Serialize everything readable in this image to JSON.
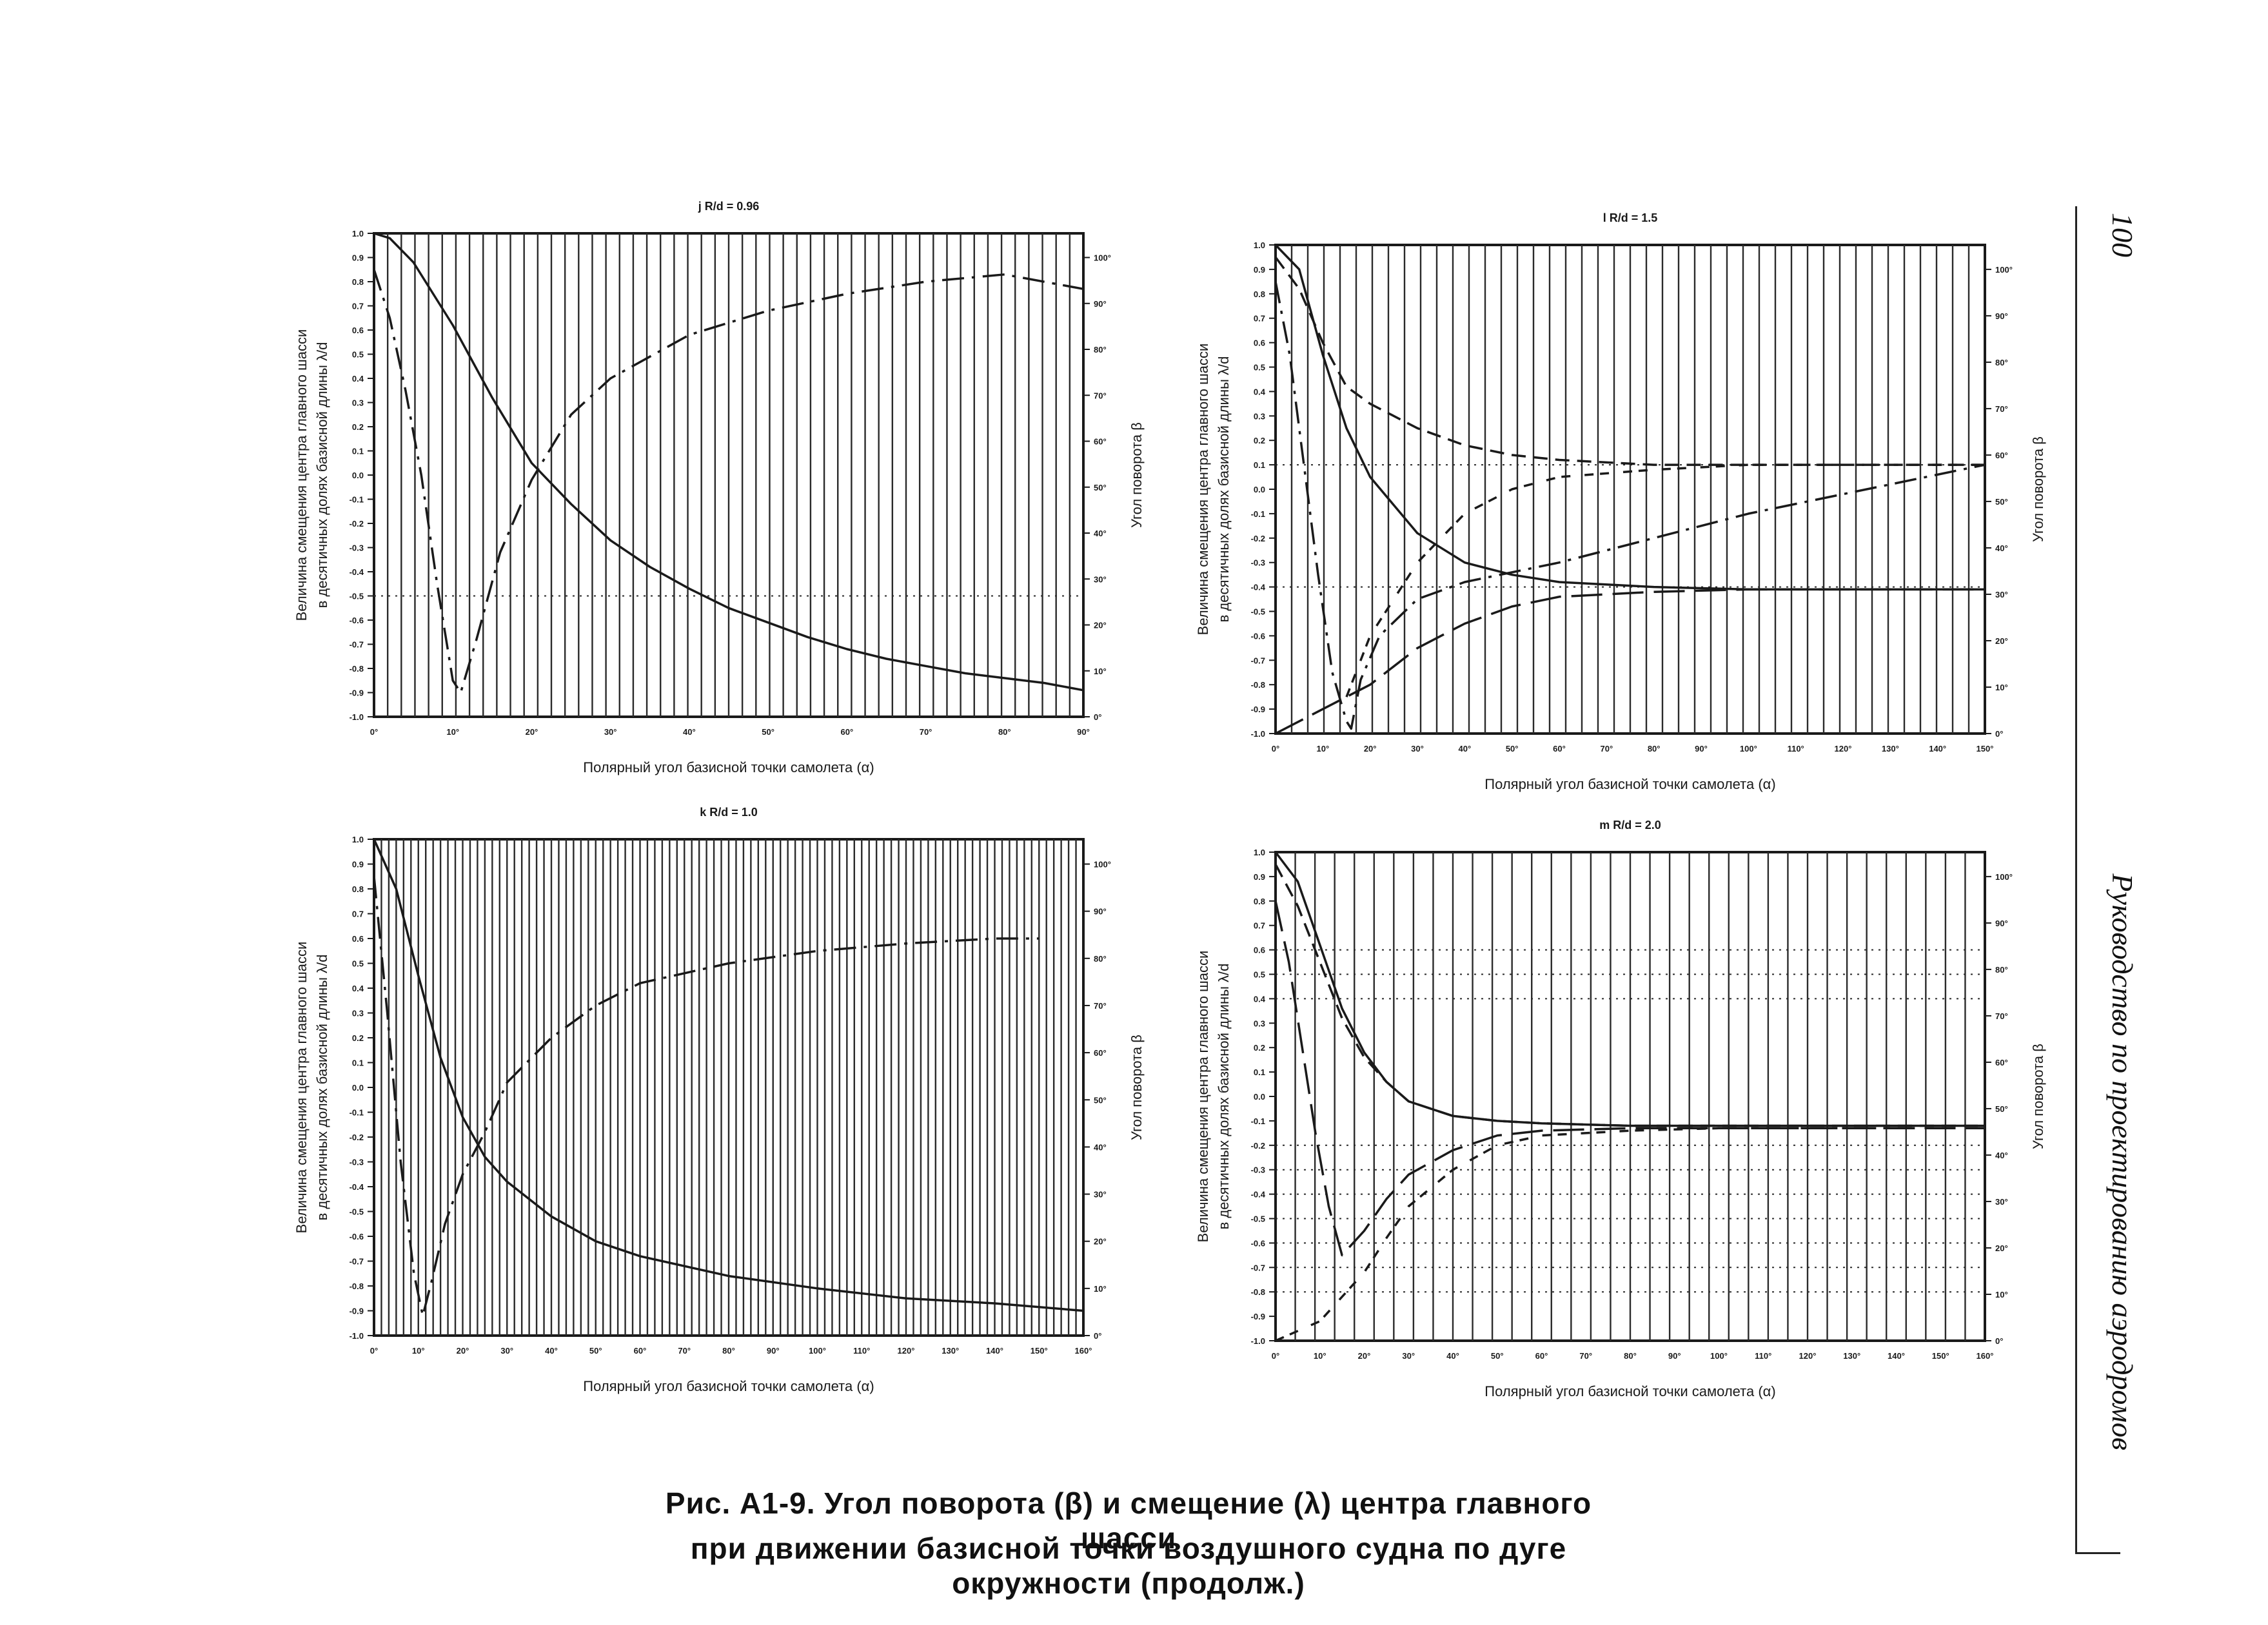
{
  "page": {
    "number": "100",
    "running_title": "Руководство по проектированию аэродромов",
    "caption_line1": "Рис. А1-9. Угол поворота (β) и смещение (λ) центра главного шасси",
    "caption_line2": "при движении базисной точки воздушного судна по дуге окружности (продолж.)"
  },
  "colors": {
    "ink": "#1a1a1a",
    "grid": "#2a2a2a",
    "paper": "#ffffff"
  },
  "chart_data": [
    {
      "id": "j",
      "type": "line",
      "panel_label": "j  R/d = 0.96",
      "xlabel": "Полярный угол базисной точки самолета (α)",
      "ylabel_line1": "Величина смещения центра главного шасси",
      "ylabel_line2": "в десятичных долях базисной длины λ/d",
      "y2label": "Угол поворота β",
      "xlim": [
        0,
        90
      ],
      "ylim": [
        -1.0,
        1.0
      ],
      "y2lim": [
        0,
        100
      ],
      "vertical_grid_count": 52,
      "dotted_y": [
        -0.5
      ],
      "series": [
        {
          "style": "solid",
          "x": [
            0,
            2,
            5,
            10,
            15,
            20,
            25,
            30,
            35,
            40,
            45,
            50,
            55,
            60,
            65,
            70,
            75,
            80,
            85,
            90
          ],
          "y": [
            1.0,
            0.98,
            0.88,
            0.62,
            0.32,
            0.05,
            -0.12,
            -0.27,
            -0.38,
            -0.47,
            -0.55,
            -0.61,
            -0.67,
            -0.72,
            -0.76,
            -0.79,
            -0.82,
            -0.84,
            -0.86,
            -0.89
          ]
        },
        {
          "style": "dashdot",
          "x": [
            0,
            2,
            4,
            6,
            8,
            10,
            11,
            13,
            16,
            20,
            25,
            30,
            40,
            50,
            60,
            70,
            80,
            90
          ],
          "y": [
            0.85,
            0.65,
            0.35,
            0.0,
            -0.45,
            -0.85,
            -0.9,
            -0.68,
            -0.32,
            -0.02,
            0.25,
            0.4,
            0.58,
            0.68,
            0.75,
            0.8,
            0.83,
            0.77
          ]
        }
      ]
    },
    {
      "id": "l",
      "type": "line",
      "panel_label": "l  R/d = 1.5",
      "xlabel": "Полярный угол базисной точки самолета (α)",
      "ylabel_line1": "Величина смещения центра главного шасси",
      "ylabel_line2": "в десятичных долях базисной длины λ/d",
      "y2label": "Угол поворота β",
      "xlim": [
        0,
        150
      ],
      "ylim": [
        -1.0,
        1.0
      ],
      "y2lim": [
        0,
        100
      ],
      "vertical_grid_count": 44,
      "dotted_y": [
        0.1,
        -0.4
      ],
      "series": [
        {
          "style": "solid",
          "x": [
            0,
            5,
            10,
            15,
            20,
            30,
            40,
            50,
            60,
            80,
            100,
            120,
            150
          ],
          "y": [
            1.0,
            0.9,
            0.55,
            0.25,
            0.05,
            -0.18,
            -0.3,
            -0.35,
            -0.38,
            -0.4,
            -0.41,
            -0.41,
            -0.41
          ]
        },
        {
          "style": "dashed",
          "x": [
            0,
            5,
            10,
            15,
            20,
            30,
            40,
            50,
            60,
            80,
            100,
            120,
            150
          ],
          "y": [
            0.95,
            0.82,
            0.6,
            0.42,
            0.35,
            0.25,
            0.18,
            0.14,
            0.12,
            0.1,
            0.1,
            0.1,
            0.1
          ]
        },
        {
          "style": "dashdot",
          "x": [
            0,
            3,
            6,
            9,
            12,
            15,
            16,
            18,
            22,
            30,
            40,
            60,
            80,
            100,
            120,
            150
          ],
          "y": [
            0.85,
            0.55,
            0.1,
            -0.35,
            -0.75,
            -0.95,
            -0.98,
            -0.78,
            -0.6,
            -0.45,
            -0.38,
            -0.3,
            -0.2,
            -0.1,
            -0.02,
            0.1
          ]
        },
        {
          "style": "longdash",
          "x": [
            0,
            10,
            20,
            30,
            40,
            50,
            60,
            80,
            100,
            120,
            150
          ],
          "y": [
            -1.0,
            -0.9,
            -0.8,
            -0.65,
            -0.55,
            -0.48,
            -0.44,
            -0.42,
            -0.41,
            -0.41,
            -0.41
          ]
        },
        {
          "style": "dashed2",
          "x": [
            15,
            20,
            30,
            40,
            50,
            60,
            80,
            100,
            120,
            150
          ],
          "y": [
            -0.85,
            -0.6,
            -0.3,
            -0.1,
            0.0,
            0.05,
            0.08,
            0.1,
            0.1,
            0.1
          ]
        }
      ]
    },
    {
      "id": "k",
      "type": "line",
      "panel_label": "k  R/d = 1.0",
      "xlabel": "Полярный угол базисной точки самолета (α)",
      "ylabel_line1": "Величина смещения центра главного шасси",
      "ylabel_line2": "в десятичных долях базисной длины λ/d",
      "y2label": "Угол поворота β",
      "xlim": [
        0,
        160
      ],
      "ylim": [
        -1.0,
        1.0
      ],
      "y2lim": [
        0,
        100
      ],
      "vertical_grid_count": 96,
      "dotted_y": [],
      "series": [
        {
          "style": "solid",
          "x": [
            0,
            5,
            10,
            15,
            20,
            25,
            30,
            40,
            50,
            60,
            80,
            100,
            120,
            140,
            160
          ],
          "y": [
            1.0,
            0.8,
            0.45,
            0.12,
            -0.12,
            -0.28,
            -0.38,
            -0.52,
            -0.62,
            -0.68,
            -0.76,
            -0.81,
            -0.85,
            -0.87,
            -0.9
          ]
        },
        {
          "style": "dashdot",
          "x": [
            0,
            3,
            6,
            9,
            11,
            13,
            16,
            20,
            25,
            30,
            40,
            50,
            60,
            80,
            100,
            120,
            140,
            150
          ],
          "y": [
            0.85,
            0.3,
            -0.3,
            -0.75,
            -0.92,
            -0.78,
            -0.55,
            -0.35,
            -0.18,
            0.02,
            0.2,
            0.33,
            0.42,
            0.5,
            0.55,
            0.58,
            0.6,
            0.6
          ]
        }
      ]
    },
    {
      "id": "m",
      "type": "line",
      "panel_label": "m  R/d = 2.0",
      "xlabel": "Полярный угол базисной точки самолета (α)",
      "ylabel_line1": "Величина смещения центра главного шасси",
      "ylabel_line2": "в десятичных долях базисной длины λ/d",
      "y2label": "Угол поворота β",
      "xlim": [
        0,
        160
      ],
      "ylim": [
        -1.0,
        1.0
      ],
      "y2lim": [
        0,
        100
      ],
      "vertical_grid_count": 36,
      "dotted_y": [
        0.6,
        0.5,
        0.4,
        -0.2,
        -0.3,
        -0.4,
        -0.5,
        -0.6,
        -0.7,
        -0.8
      ],
      "series": [
        {
          "style": "solid",
          "x": [
            0,
            5,
            10,
            15,
            20,
            25,
            30,
            40,
            50,
            60,
            80,
            100,
            120,
            160
          ],
          "y": [
            1.0,
            0.88,
            0.62,
            0.36,
            0.18,
            0.06,
            -0.02,
            -0.08,
            -0.1,
            -0.11,
            -0.12,
            -0.12,
            -0.12,
            -0.12
          ]
        },
        {
          "style": "dashed",
          "x": [
            0,
            5,
            10,
            15,
            20,
            25,
            30,
            40,
            50,
            60,
            80,
            100,
            120,
            160
          ],
          "y": [
            0.95,
            0.78,
            0.55,
            0.32,
            0.16,
            0.06,
            -0.02,
            -0.08,
            -0.1,
            -0.11,
            -0.12,
            -0.12,
            -0.12,
            -0.12
          ]
        },
        {
          "style": "longdash",
          "x": [
            0,
            3,
            6,
            9,
            12,
            15,
            20,
            25,
            30,
            40,
            50,
            60,
            80,
            100,
            120,
            160
          ],
          "y": [
            0.8,
            0.55,
            0.2,
            -0.15,
            -0.45,
            -0.65,
            -0.55,
            -0.42,
            -0.32,
            -0.22,
            -0.16,
            -0.14,
            -0.13,
            -0.13,
            -0.13,
            -0.13
          ]
        },
        {
          "style": "dashed2",
          "x": [
            0,
            10,
            20,
            25,
            30,
            40,
            50,
            60,
            80,
            100,
            160
          ],
          "y": [
            -1.0,
            -0.92,
            -0.72,
            -0.58,
            -0.45,
            -0.3,
            -0.2,
            -0.16,
            -0.14,
            -0.13,
            -0.13
          ]
        }
      ]
    }
  ]
}
